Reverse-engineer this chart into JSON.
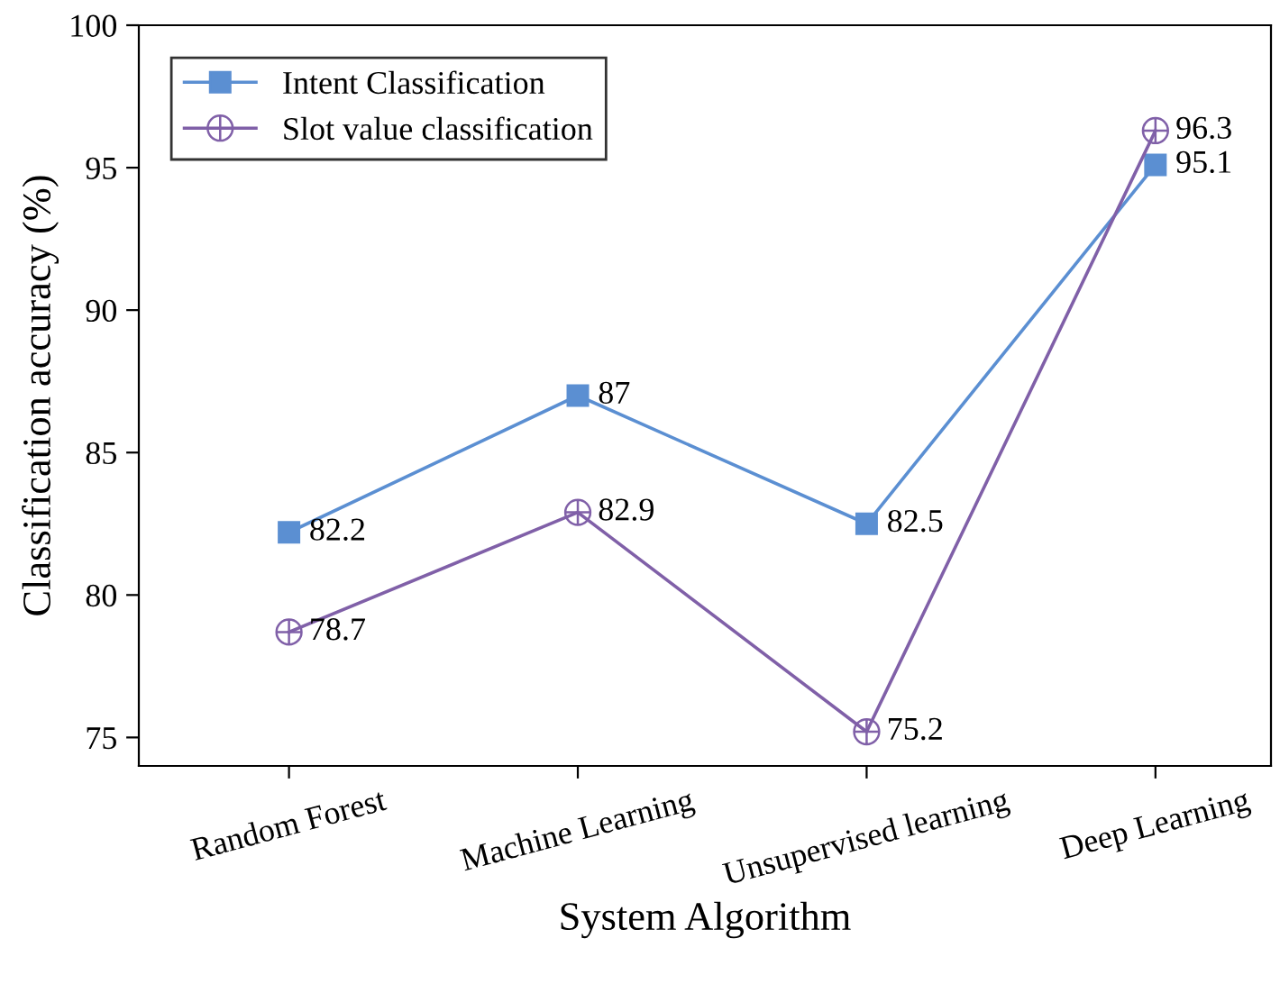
{
  "chart_data": {
    "type": "line",
    "xlabel": "System Algorithm",
    "ylabel": "Classification accuracy (%)",
    "categories": [
      "Random Forest",
      "Machine Learning",
      "Unsupervised learning",
      "Deep Learning"
    ],
    "series": [
      {
        "name": "Intent Classification",
        "color": "#5b8fd2",
        "values": [
          82.2,
          87,
          82.5,
          95.1
        ],
        "marker": "square"
      },
      {
        "name": "Slot value classification",
        "color": "#8060a8",
        "values": [
          78.7,
          82.9,
          75.2,
          96.3
        ],
        "marker": "cross"
      }
    ],
    "ylim": [
      74,
      100
    ],
    "yticks": [
      75,
      80,
      85,
      90,
      95,
      100
    ],
    "grid": false,
    "legend": "top left",
    "data_labels": true,
    "line_style": "solid"
  }
}
